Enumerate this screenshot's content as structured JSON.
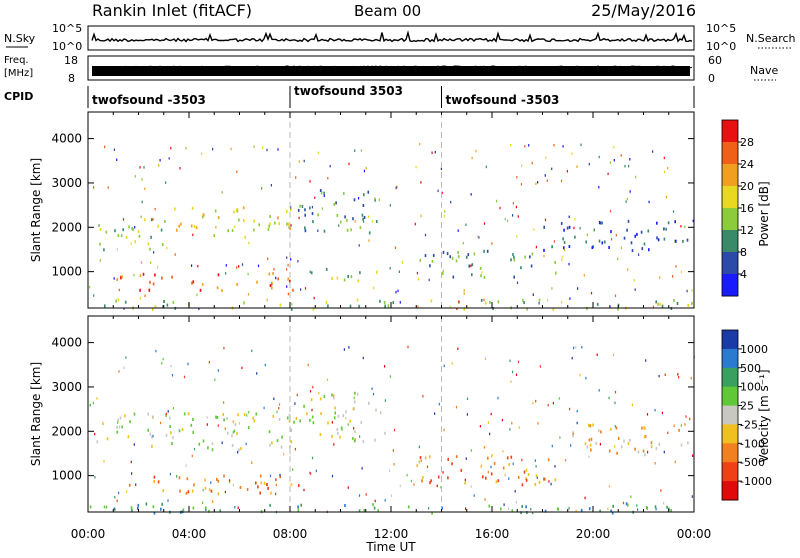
{
  "header": {
    "station": "Rankin Inlet (fitACF)",
    "beam": "Beam 00",
    "date": "25/May/2016"
  },
  "noise_panel": {
    "left_label": "N.Sky",
    "right_label": "N.Search",
    "yticks": [
      "10^5",
      "10^0"
    ]
  },
  "freq_panel": {
    "left_label_top": "Freq.",
    "left_label_bottom": "[MHz]",
    "left_ticks": [
      "18",
      "8"
    ],
    "right_label": "Nave",
    "right_ticks": [
      "60",
      "0"
    ]
  },
  "cpid_panel": {
    "label": "CPID",
    "segments": [
      {
        "name": "twofsound -3503",
        "start_hour": 0,
        "end_hour": 8
      },
      {
        "name": "twofsound 3503",
        "start_hour": 8,
        "end_hour": 14
      },
      {
        "name": "twofsound -3503",
        "start_hour": 14,
        "end_hour": 24
      }
    ]
  },
  "chart_data": [
    {
      "type": "heatmap",
      "quantity": "power",
      "ylabel": "Slant Range [km]",
      "xlim": [
        0,
        24
      ],
      "ylim": [
        180,
        4600
      ],
      "yticks": [
        1000,
        2000,
        3000,
        4000
      ],
      "colorbar": {
        "label": "Power [dB]",
        "ticks": [
          "4",
          "8",
          "12",
          "16",
          "20",
          "24",
          "28"
        ],
        "colors": [
          "#1a1aff",
          "#2c4aa8",
          "#3a8a6a",
          "#8ccc3c",
          "#e8d820",
          "#f0a020",
          "#f06018",
          "#e81010"
        ]
      },
      "regions": [
        {
          "t0": 0.3,
          "t1": 3.0,
          "r0": 1500,
          "r1": 2250,
          "level": 3
        },
        {
          "t0": 3.0,
          "t1": 8.3,
          "r0": 1800,
          "r1": 2500,
          "level": 4
        },
        {
          "t0": 8.3,
          "t1": 11.5,
          "r0": 1900,
          "r1": 2900,
          "level": 2
        },
        {
          "t0": 1.0,
          "t1": 8.5,
          "r0": 600,
          "r1": 1000,
          "level": 6
        },
        {
          "t0": 8.5,
          "t1": 11.5,
          "r0": 800,
          "r1": 1100,
          "level": 3
        },
        {
          "t0": 13.0,
          "t1": 18.5,
          "r0": 900,
          "r1": 1500,
          "level": 2
        },
        {
          "t0": 18.0,
          "t1": 24.0,
          "r0": 1500,
          "r1": 2200,
          "level": 1
        },
        {
          "t0": 0.0,
          "t1": 24.0,
          "r0": 180,
          "r1": 400,
          "level": 3
        }
      ]
    },
    {
      "type": "heatmap",
      "quantity": "velocity",
      "ylabel": "Slant Range [km]",
      "xlabel": "Time UT",
      "xlim": [
        0,
        24
      ],
      "ylim": [
        180,
        4600
      ],
      "yticks": [
        1000,
        2000,
        3000,
        4000
      ],
      "xticks": [
        "00:00",
        "04:00",
        "08:00",
        "12:00",
        "16:00",
        "20:00",
        "00:00"
      ],
      "colorbar": {
        "label": "Velocity [m s⁻¹]",
        "ticks": [
          "1000",
          "500",
          "100",
          "25",
          "-25",
          "-100",
          "-500",
          "-1000"
        ],
        "colors": [
          "#1a3aa8",
          "#2a7ad0",
          "#3aa060",
          "#60c838",
          "#c8c8c0",
          "#f0c020",
          "#f08020",
          "#f04018",
          "#e00a0a"
        ]
      },
      "regions": [
        {
          "t0": 0.3,
          "t1": 8.3,
          "r0": 1600,
          "r1": 2450,
          "level": 4
        },
        {
          "t0": 8.3,
          "t1": 11.8,
          "r0": 1800,
          "r1": 2900,
          "level": 4
        },
        {
          "t0": 1.5,
          "t1": 8.5,
          "r0": 600,
          "r1": 1050,
          "level": 6
        },
        {
          "t0": 13.0,
          "t1": 18.5,
          "r0": 800,
          "r1": 1500,
          "level": 6
        },
        {
          "t0": 19.0,
          "t1": 24.0,
          "r0": 1500,
          "r1": 2200,
          "level": 5
        },
        {
          "t0": 0.0,
          "t1": 24.0,
          "r0": 180,
          "r1": 400,
          "level": 2
        }
      ]
    }
  ]
}
